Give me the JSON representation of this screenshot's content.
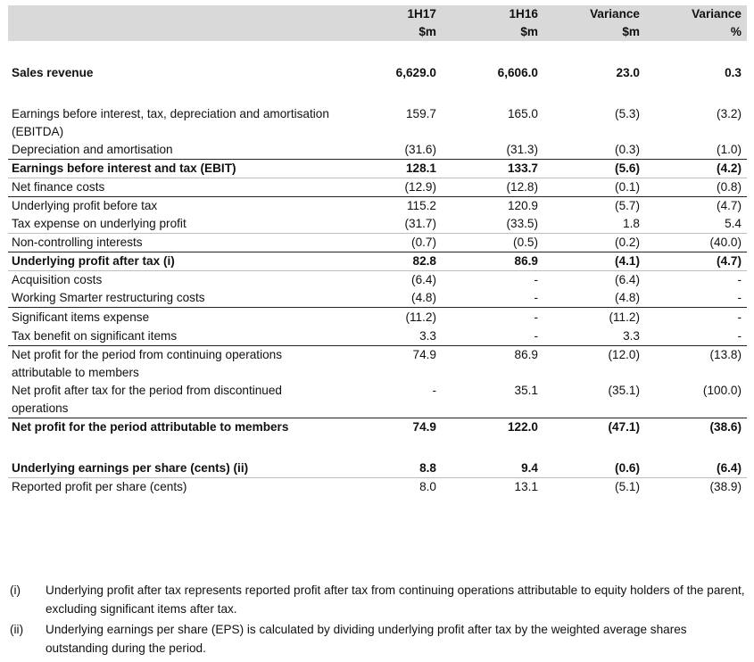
{
  "table": {
    "headers": [
      {
        "line1": "",
        "line2": ""
      },
      {
        "line1": "1H17",
        "line2": "$m"
      },
      {
        "line1": "1H16",
        "line2": "$m"
      },
      {
        "line1": "Variance",
        "line2": "$m"
      },
      {
        "line1": "Variance",
        "line2": "%"
      }
    ],
    "rows": [
      {
        "label": "Sales revenue",
        "values": [
          "6,629.0",
          "6,606.0",
          "23.0",
          "0.3"
        ],
        "bold": true
      },
      {
        "label": "Earnings before interest, tax, depreciation and amortisation (EBITDA)",
        "values": [
          "159.7",
          "165.0",
          "(5.3)",
          "(3.2)"
        ],
        "bold": false
      },
      {
        "label": "Depreciation and amortisation",
        "values": [
          "(31.6)",
          "(31.3)",
          "(0.3)",
          "(1.0)"
        ],
        "bold": false
      },
      {
        "label": "Earnings before interest and tax (EBIT)",
        "values": [
          "128.1",
          "133.7",
          "(5.6)",
          "(4.2)"
        ],
        "bold": true
      },
      {
        "label": "Net finance costs",
        "values": [
          "(12.9)",
          "(12.8)",
          "(0.1)",
          "(0.8)"
        ],
        "bold": false
      },
      {
        "label": "Underlying profit before tax",
        "values": [
          "115.2",
          "120.9",
          "(5.7)",
          "(4.7)"
        ],
        "bold": false
      },
      {
        "label": "Tax expense on underlying profit",
        "values": [
          "(31.7)",
          "(33.5)",
          "1.8",
          "5.4"
        ],
        "bold": false
      },
      {
        "label": "Non-controlling interests",
        "values": [
          "(0.7)",
          "(0.5)",
          "(0.2)",
          "(40.0)"
        ],
        "bold": false
      },
      {
        "label": "Underlying profit after tax (i)",
        "values": [
          "82.8",
          "86.9",
          "(4.1)",
          "(4.7)"
        ],
        "bold": true
      },
      {
        "label": "Acquisition costs",
        "values": [
          "(6.4)",
          "-",
          "(6.4)",
          "-"
        ],
        "bold": false
      },
      {
        "label": "Working Smarter restructuring costs",
        "values": [
          "(4.8)",
          "-",
          "(4.8)",
          "-"
        ],
        "bold": false
      },
      {
        "label": "Significant items expense",
        "values": [
          "(11.2)",
          "-",
          "(11.2)",
          "-"
        ],
        "bold": false
      },
      {
        "label": "Tax benefit on significant items",
        "values": [
          "3.3",
          "-",
          "3.3",
          "-"
        ],
        "bold": false
      },
      {
        "label": "Net profit for the period from continuing operations attributable to members",
        "values": [
          "74.9",
          "86.9",
          "(12.0)",
          "(13.8)"
        ],
        "bold": false
      },
      {
        "label": "Net profit after tax for the period from discontinued operations",
        "values": [
          "-",
          "35.1",
          "(35.1)",
          "(100.0)"
        ],
        "bold": false
      },
      {
        "label": "Net profit for the period attributable to members",
        "values": [
          "74.9",
          "122.0",
          "(47.1)",
          "(38.6)"
        ],
        "bold": true
      },
      {
        "label": "Underlying earnings per share (cents) (ii)",
        "values": [
          "8.8",
          "9.4",
          "(0.6)",
          "(6.4)"
        ],
        "bold": true
      },
      {
        "label": "Reported profit per share (cents)",
        "values": [
          "8.0",
          "13.1",
          "(5.1)",
          "(38.9)"
        ],
        "bold": false
      }
    ]
  },
  "notes": [
    {
      "ref": "(i)",
      "text": "Underlying profit after tax represents reported profit after tax from continuing operations attributable to equity holders of the parent, excluding significant items after tax."
    },
    {
      "ref": "(ii)",
      "text": "Underlying earnings per share (EPS) is calculated by dividing underlying profit after tax by the weighted average shares outstanding during the period."
    }
  ]
}
